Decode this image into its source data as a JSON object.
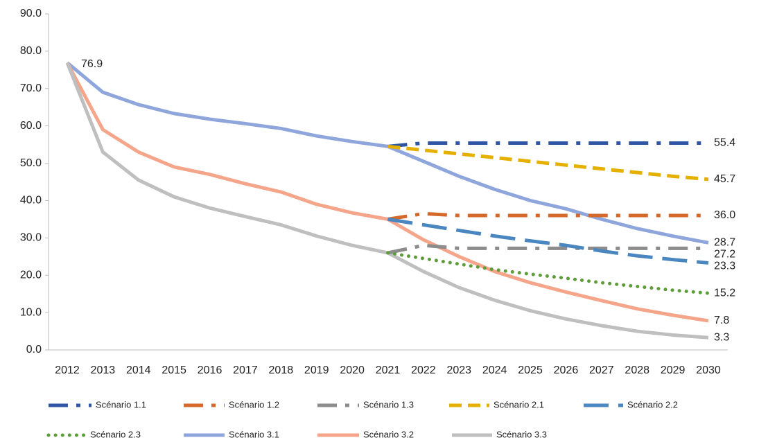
{
  "chart_data": {
    "type": "line",
    "categories": [
      "2012",
      "2013",
      "2014",
      "2015",
      "2016",
      "2017",
      "2018",
      "2019",
      "2020",
      "2021",
      "2022",
      "2023",
      "2024",
      "2025",
      "2026",
      "2027",
      "2028",
      "2029",
      "2030"
    ],
    "ylim": [
      0,
      90
    ],
    "yticks": [
      {
        "value": 0,
        "label": "0.0"
      },
      {
        "value": 10,
        "label": "10.0"
      },
      {
        "value": 20,
        "label": "20.0"
      },
      {
        "value": 30,
        "label": "30.0"
      },
      {
        "value": 40,
        "label": "40.0"
      },
      {
        "value": 50,
        "label": "50.0"
      },
      {
        "value": 60,
        "label": "60.0"
      },
      {
        "value": 70,
        "label": "70.0"
      },
      {
        "value": 80,
        "label": "80.0"
      },
      {
        "value": 90,
        "label": "90.0"
      }
    ],
    "grid": false,
    "legend": "bottom",
    "series": [
      {
        "name": "Scénario 1.1",
        "color": "#2f55a4",
        "dash": "dash-dot",
        "values": [
          null,
          null,
          null,
          null,
          null,
          null,
          null,
          null,
          null,
          54.5,
          55.4,
          55.4,
          55.4,
          55.4,
          55.4,
          55.4,
          55.4,
          55.4,
          55.4
        ],
        "value_labels": [
          null,
          null,
          null,
          null,
          null,
          null,
          null,
          null,
          null,
          null,
          null,
          null,
          null,
          null,
          null,
          null,
          null,
          null,
          "55.4"
        ]
      },
      {
        "name": "Scénario 1.2",
        "color": "#d4692a",
        "dash": "dash-dot",
        "values": [
          null,
          null,
          null,
          null,
          null,
          null,
          null,
          null,
          null,
          35,
          36.5,
          36,
          36,
          36,
          36,
          36,
          36,
          36,
          36
        ],
        "value_labels": [
          null,
          null,
          null,
          null,
          null,
          null,
          null,
          null,
          null,
          null,
          null,
          null,
          null,
          null,
          null,
          null,
          null,
          null,
          "36.0"
        ]
      },
      {
        "name": "Scénario 1.3",
        "color": "#8c8c8c",
        "dash": "dash-dot",
        "values": [
          null,
          null,
          null,
          null,
          null,
          null,
          null,
          null,
          null,
          26,
          28,
          27.2,
          27.2,
          27.2,
          27.2,
          27.2,
          27.2,
          27.2,
          27.2
        ],
        "value_labels": [
          null,
          null,
          null,
          null,
          null,
          null,
          null,
          null,
          null,
          null,
          null,
          null,
          null,
          null,
          null,
          null,
          null,
          null,
          "27.2"
        ]
      },
      {
        "name": "Scénario 2.1",
        "color": "#e5b000",
        "dash": "dash",
        "values": [
          null,
          null,
          null,
          null,
          null,
          null,
          null,
          null,
          null,
          54.5,
          53.5,
          52.5,
          51.5,
          50.5,
          49.5,
          48.5,
          47.5,
          46.5,
          45.7
        ],
        "value_labels": [
          null,
          null,
          null,
          null,
          null,
          null,
          null,
          null,
          null,
          null,
          null,
          null,
          null,
          null,
          null,
          null,
          null,
          null,
          "45.7"
        ]
      },
      {
        "name": "Scénario 2.2",
        "color": "#4a86c0",
        "dash": "long-dash",
        "values": [
          null,
          null,
          null,
          null,
          null,
          null,
          null,
          null,
          null,
          35,
          33.5,
          32,
          30.5,
          29.2,
          28,
          26.5,
          25.2,
          24.2,
          23.3
        ],
        "value_labels": [
          null,
          null,
          null,
          null,
          null,
          null,
          null,
          null,
          null,
          null,
          null,
          null,
          null,
          null,
          null,
          null,
          null,
          null,
          "23.3"
        ]
      },
      {
        "name": "Scénario 2.3",
        "color": "#5e9e3a",
        "dash": "dot",
        "values": [
          null,
          null,
          null,
          null,
          null,
          null,
          null,
          null,
          null,
          26,
          24.5,
          23,
          21.5,
          20.3,
          19.2,
          18,
          17,
          16,
          15.2
        ],
        "value_labels": [
          null,
          null,
          null,
          null,
          null,
          null,
          null,
          null,
          null,
          null,
          null,
          null,
          null,
          null,
          null,
          null,
          null,
          null,
          "15.2"
        ]
      },
      {
        "name": "Scénario 3.1",
        "color": "#8fa6dc",
        "dash": "solid",
        "values": [
          76.9,
          69,
          65.7,
          63.3,
          61.8,
          60.6,
          59.3,
          57.3,
          55.8,
          54.5,
          50.5,
          46.5,
          43,
          40,
          37.8,
          35,
          32.5,
          30.5,
          28.7
        ],
        "value_labels": [
          "76.9",
          null,
          null,
          null,
          null,
          null,
          null,
          null,
          null,
          null,
          null,
          null,
          null,
          null,
          null,
          null,
          null,
          null,
          "28.7"
        ]
      },
      {
        "name": "Scénario 3.2",
        "color": "#f4a58a",
        "dash": "solid",
        "values": [
          76.9,
          59,
          53,
          49,
          47,
          44.5,
          42.3,
          39,
          36.7,
          35,
          29.5,
          25,
          21,
          18,
          15.5,
          13.2,
          11,
          9.3,
          7.8
        ],
        "value_labels": [
          null,
          null,
          null,
          null,
          null,
          null,
          null,
          null,
          null,
          null,
          null,
          null,
          null,
          null,
          null,
          null,
          null,
          null,
          "7.8"
        ]
      },
      {
        "name": "Scénario 3.3",
        "color": "#bfbfbf",
        "dash": "solid",
        "values": [
          76.9,
          53,
          45.5,
          41,
          38,
          35.7,
          33.5,
          30.5,
          28,
          26,
          21,
          16.7,
          13.3,
          10.5,
          8.3,
          6.5,
          5,
          4,
          3.3
        ],
        "value_labels": [
          null,
          null,
          null,
          null,
          null,
          null,
          null,
          null,
          null,
          null,
          null,
          null,
          null,
          null,
          null,
          null,
          null,
          null,
          "3.3"
        ]
      }
    ]
  }
}
